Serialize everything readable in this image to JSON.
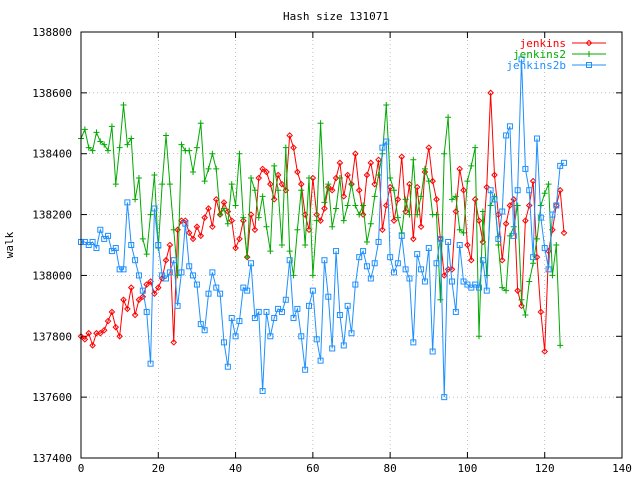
{
  "chart_data": {
    "type": "line",
    "title": "Hash size 131071",
    "xlabel": "",
    "ylabel": "walk",
    "xlim": [
      0,
      140
    ],
    "ylim": [
      137400,
      138800
    ],
    "xticks": [
      0,
      20,
      40,
      60,
      80,
      100,
      120,
      140
    ],
    "yticks": [
      137400,
      137600,
      137800,
      138000,
      138200,
      138400,
      138600,
      138800
    ],
    "grid": true,
    "legend": "top-right",
    "series": [
      {
        "name": "jenkins",
        "color": "#ff0000",
        "marker": "diamond",
        "values": [
          137800,
          137790,
          137810,
          137770,
          137810,
          137810,
          137820,
          137850,
          137880,
          137830,
          137800,
          137920,
          137890,
          137960,
          137870,
          137920,
          137930,
          137970,
          137980,
          137940,
          137960,
          137990,
          138050,
          138100,
          137780,
          138150,
          138180,
          138180,
          138140,
          138120,
          138160,
          138130,
          138190,
          138220,
          138160,
          138250,
          138200,
          138240,
          138210,
          138180,
          138090,
          138120,
          138180,
          138060,
          138200,
          138150,
          138320,
          138350,
          138340,
          138300,
          138250,
          138330,
          138300,
          138280,
          138460,
          138420,
          138340,
          138300,
          138200,
          138150,
          138320,
          138200,
          138180,
          138220,
          138290,
          138280,
          138320,
          138370,
          138260,
          138330,
          138300,
          138400,
          138280,
          138200,
          138330,
          138370,
          138300,
          138380,
          138150,
          138230,
          138290,
          138180,
          138250,
          138390,
          138210,
          138300,
          138120,
          138290,
          138160,
          138340,
          138420,
          138310,
          138250,
          138120,
          138000,
          138020,
          138020,
          138210,
          138350,
          138280,
          138100,
          138050,
          138250,
          138180,
          138110,
          138290,
          138600,
          138330,
          138200,
          138050,
          138170,
          138230,
          138250,
          137950,
          137900,
          138180,
          138230,
          138310,
          138060,
          137880,
          137750,
          138080,
          138150,
          138230,
          138280,
          138140
        ]
      },
      {
        "name": "jenkins2",
        "color": "#00aa00",
        "marker": "plus",
        "values": [
          138450,
          138480,
          138420,
          138410,
          138470,
          138440,
          138430,
          138410,
          138490,
          138300,
          138420,
          138560,
          138430,
          138450,
          138250,
          138320,
          138120,
          138070,
          138200,
          138330,
          138090,
          138300,
          138460,
          138300,
          138150,
          138000,
          138430,
          138410,
          138410,
          138340,
          138420,
          138500,
          138310,
          138350,
          138400,
          138350,
          138200,
          138220,
          138170,
          138300,
          138230,
          138400,
          138190,
          138060,
          138320,
          138280,
          138190,
          138260,
          138160,
          138080,
          138360,
          138280,
          138100,
          138420,
          138080,
          138000,
          138150,
          138280,
          138100,
          138320,
          138000,
          138180,
          138500,
          138240,
          138300,
          138160,
          138220,
          138320,
          138180,
          138230,
          138300,
          138230,
          138200,
          138230,
          138110,
          138170,
          138260,
          138330,
          138400,
          138560,
          138320,
          138280,
          138190,
          138140,
          138250,
          138200,
          138380,
          138200,
          138260,
          138350,
          138310,
          138200,
          138200,
          137920,
          138400,
          138520,
          138250,
          138260,
          138150,
          138140,
          138310,
          138360,
          138420,
          137800,
          138210,
          138000,
          138230,
          138260,
          138100,
          137960,
          137950,
          138130,
          138160,
          138230,
          137920,
          137870,
          137980,
          138040,
          138120,
          138230,
          138270,
          138300,
          138000,
          138100,
          137770
        ]
      },
      {
        "name": "jenkins2b",
        "color": "#1e90ff",
        "marker": "square",
        "values": [
          138110,
          138110,
          138100,
          138110,
          138090,
          138150,
          138120,
          138130,
          138080,
          138090,
          138020,
          138020,
          138240,
          138100,
          138050,
          138000,
          137950,
          137880,
          137710,
          138220,
          138100,
          138000,
          137990,
          138010,
          138050,
          137900,
          138010,
          138170,
          138030,
          138000,
          137970,
          137840,
          137820,
          137940,
          138010,
          137960,
          137940,
          137780,
          137700,
          137860,
          137800,
          137850,
          137960,
          137950,
          138040,
          137860,
          137880,
          137620,
          137880,
          137800,
          137860,
          137890,
          137880,
          137920,
          138050,
          137860,
          137890,
          137800,
          137690,
          137900,
          137950,
          137790,
          137720,
          138050,
          137930,
          137760,
          138080,
          137870,
          137770,
          137900,
          137810,
          137970,
          138060,
          138080,
          138030,
          137990,
          138040,
          138110,
          138420,
          138440,
          138060,
          138010,
          138040,
          138130,
          138020,
          137990,
          137780,
          138070,
          138020,
          137980,
          138090,
          137750,
          138040,
          138120,
          137600,
          138110,
          137980,
          137880,
          138100,
          137980,
          137970,
          137960,
          137970,
          137960,
          138050,
          137950,
          138280,
          138250,
          138120,
          138210,
          138460,
          138490,
          138130,
          138280,
          138710,
          138350,
          138280,
          138060,
          138450,
          138190,
          138090,
          138020,
          138200,
          138230,
          138360,
          138370
        ]
      }
    ]
  }
}
